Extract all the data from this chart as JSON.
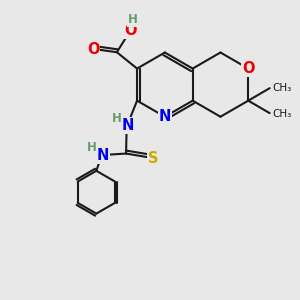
{
  "bg_color": "#e8e8e8",
  "bond_color": "#1a1a1a",
  "N_color": "#0000ee",
  "O_color": "#ee0000",
  "S_color": "#ccaa00",
  "H_color": "#6a9a6a",
  "lw": 1.5,
  "fs": 10.5,
  "fh": 8.5,
  "xlim": [
    0,
    10
  ],
  "ylim": [
    0,
    10
  ]
}
